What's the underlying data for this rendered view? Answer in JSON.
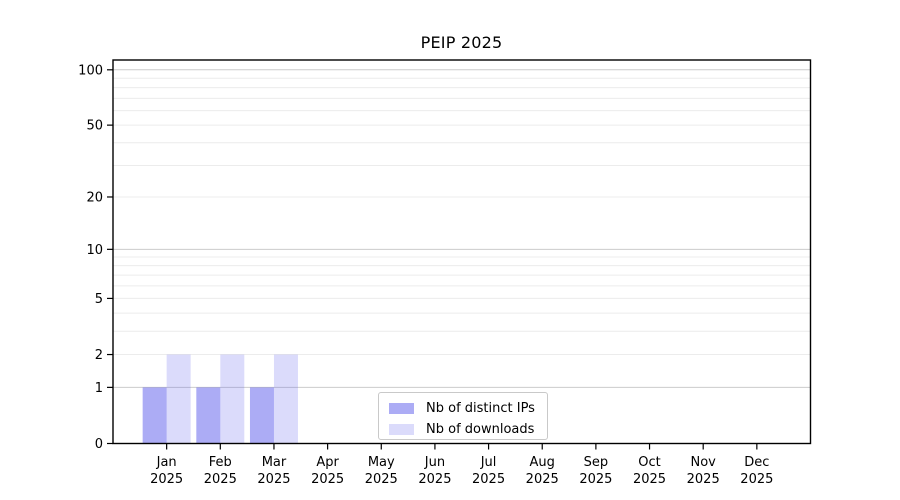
{
  "chart_data": {
    "type": "bar",
    "title": "PEIP 2025",
    "categories": [
      "Jan",
      "Feb",
      "Mar",
      "Apr",
      "May",
      "Jun",
      "Jul",
      "Aug",
      "Sep",
      "Oct",
      "Nov",
      "Dec"
    ],
    "category_year": "2025",
    "series": [
      {
        "name": "Nb of distinct IPs",
        "color": "#5a5aeb",
        "opacity": 0.5,
        "values": [
          1,
          1,
          1,
          0,
          0,
          0,
          0,
          0,
          0,
          0,
          0,
          0
        ]
      },
      {
        "name": "Nb of downloads",
        "color": "#5a5aeb",
        "opacity": 0.22,
        "values": [
          2,
          2,
          2,
          0,
          0,
          0,
          0,
          0,
          0,
          0,
          0,
          0
        ]
      }
    ],
    "yscale": "log1p",
    "ylim": [
      0,
      113
    ],
    "yticks": [
      0,
      1,
      2,
      5,
      10,
      20,
      50,
      100
    ],
    "major_gridlines": [
      1,
      10,
      100
    ],
    "minor_gridlines": [
      2,
      3,
      4,
      5,
      6,
      7,
      8,
      9,
      20,
      30,
      40,
      50,
      60,
      70,
      80,
      90
    ],
    "grid_major_color": "#cccccc",
    "grid_minor_color": "#ececec",
    "axis_color": "#000000",
    "legend_position": "inside-bottom-center",
    "grid": "on"
  }
}
